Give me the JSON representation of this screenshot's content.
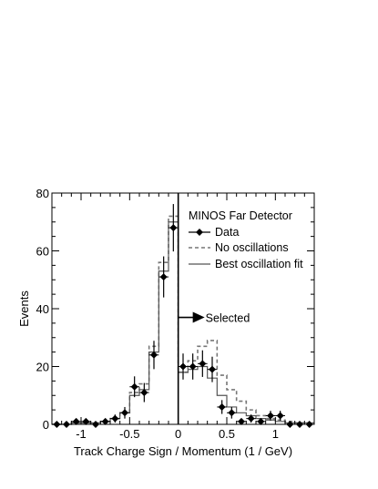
{
  "chart_data": {
    "type": "line",
    "xlabel": "Track Charge Sign / Momentum (1 / GeV)",
    "ylabel": "Events",
    "xlim": [
      -1.3,
      1.4
    ],
    "ylim": [
      0,
      80
    ],
    "x_ticks": [
      -1,
      -0.5,
      0,
      0.5,
      1
    ],
    "x_tick_labels": [
      "-1",
      "-0.5",
      "0",
      "0.5",
      "1"
    ],
    "y_ticks": [
      0,
      20,
      40,
      60,
      80
    ],
    "y_tick_labels": [
      "0",
      "20",
      "40",
      "60",
      "80"
    ],
    "legend": {
      "title": "MINOS Far Detector",
      "placement": "top-right",
      "entries": [
        "Data",
        "No oscillations",
        "Best oscillation fit"
      ]
    },
    "annotation": {
      "text": "Selected",
      "x": 0.0,
      "y": 37
    },
    "bin_edges": [
      -1.3,
      -1.2,
      -1.1,
      -1.0,
      -0.9,
      -0.8,
      -0.7,
      -0.6,
      -0.5,
      -0.4,
      -0.3,
      -0.2,
      -0.1,
      0.0,
      0.1,
      0.2,
      0.3,
      0.4,
      0.5,
      0.6,
      0.7,
      0.8,
      0.9,
      1.0,
      1.1,
      1.2,
      1.3,
      1.4
    ],
    "series": [
      {
        "name": "Data",
        "style": "points-with-errors",
        "color": "#000000",
        "x": [
          -1.25,
          -1.15,
          -1.05,
          -0.95,
          -0.85,
          -0.75,
          -0.65,
          -0.55,
          -0.45,
          -0.35,
          -0.25,
          -0.15,
          -0.05,
          0.05,
          0.15,
          0.25,
          0.35,
          0.45,
          0.55,
          0.65,
          0.75,
          0.85,
          0.95,
          1.05,
          1.15,
          1.25,
          1.35
        ],
        "y": [
          0,
          0,
          1,
          1,
          0,
          1,
          2,
          4,
          13,
          11,
          24,
          51,
          68,
          20,
          20,
          21,
          19,
          6,
          4,
          1,
          2,
          1,
          3,
          3,
          0,
          0,
          0
        ],
        "yerr": [
          0,
          0,
          1,
          1,
          0,
          1,
          1.4,
          2,
          3.6,
          3.3,
          4.9,
          7.1,
          8.2,
          4.5,
          4.5,
          4.6,
          4.4,
          2.4,
          2,
          1,
          1.4,
          1,
          1.7,
          1.7,
          0,
          0,
          0
        ]
      },
      {
        "name": "No oscillations",
        "style": "dashed-histogram",
        "color": "#777777",
        "values": [
          0,
          0,
          0.5,
          0.5,
          0.5,
          1,
          2,
          4,
          11,
          14,
          27,
          56,
          72,
          18,
          22,
          27,
          29,
          17,
          12,
          8,
          5,
          3,
          2,
          1.5,
          1,
          0.5,
          0.5
        ]
      },
      {
        "name": "Best oscillation fit",
        "style": "solid-histogram",
        "color": "#555555",
        "values": [
          0,
          0,
          0.5,
          0.5,
          0.5,
          1,
          2,
          4,
          10,
          12,
          25,
          53,
          70,
          18,
          19,
          20,
          16,
          10,
          6,
          4,
          3,
          2,
          1.5,
          1,
          0.5,
          0.5,
          0.5
        ]
      }
    ]
  }
}
